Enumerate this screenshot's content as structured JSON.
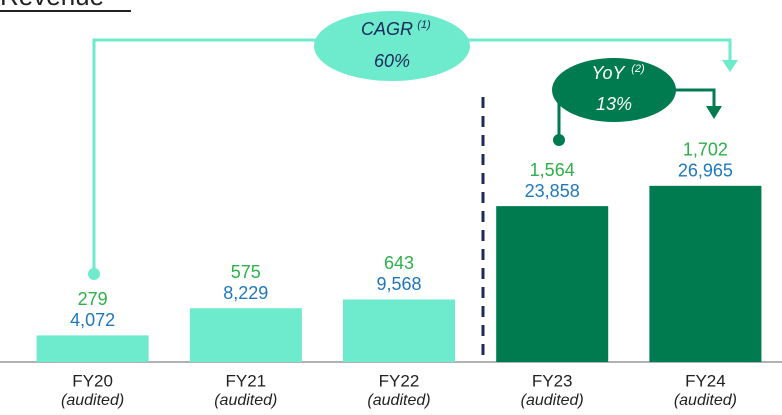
{
  "chart_data": {
    "type": "bar",
    "title": "Revenue",
    "categories": [
      "FY20",
      "FY21",
      "FY22",
      "FY23",
      "FY24"
    ],
    "category_notes": [
      "(audited)",
      "(audited)",
      "(audited)",
      "(audited)",
      "(audited)"
    ],
    "values": [
      4072,
      8229,
      9568,
      23858,
      26965
    ],
    "value_labels": [
      "4,072",
      "8,229",
      "9,568",
      "23,858",
      "26,965"
    ],
    "secondary_values": [
      279,
      575,
      643,
      1564,
      1702
    ],
    "secondary_value_labels": [
      "279",
      "575",
      "643",
      "1,564",
      "1,702"
    ],
    "colors": [
      "#6eeacd",
      "#6eeacd",
      "#6eeacd",
      "#007a4f",
      "#007a4f"
    ],
    "value_color": "#1f78bd",
    "secondary_color": "#2eb04b",
    "ylim": [
      0,
      30000
    ],
    "annotations": [
      {
        "text": "CAGR",
        "superscript": "(1)",
        "label": "60%"
      },
      {
        "text": "YoY",
        "superscript": "(2)",
        "label": "13%"
      }
    ]
  }
}
